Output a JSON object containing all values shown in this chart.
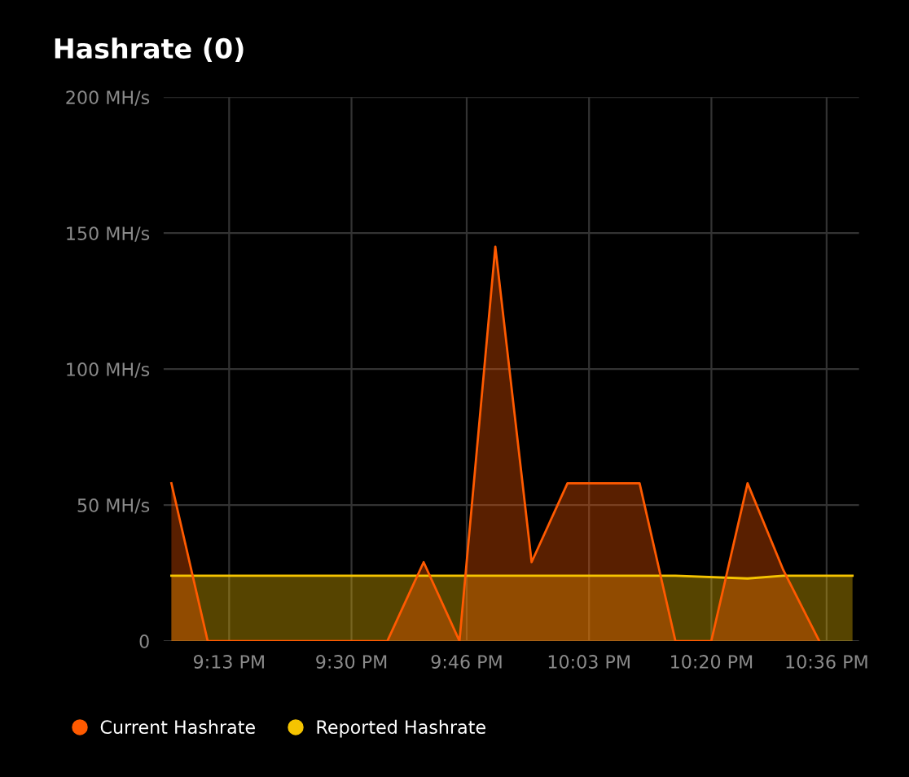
{
  "chart_data": {
    "type": "area",
    "title": "Hashrate (0)",
    "xlim": [
      21.065,
      22.675
    ],
    "xticks": [
      {
        "value": 21.2167,
        "label": "9:13 PM"
      },
      {
        "value": 21.5,
        "label": "9:30 PM"
      },
      {
        "value": 21.7667,
        "label": "9:46 PM"
      },
      {
        "value": 22.05,
        "label": "10:03 PM"
      },
      {
        "value": 22.3333,
        "label": "10:20 PM"
      },
      {
        "value": 22.6,
        "label": "10:36 PM"
      }
    ],
    "ylim": [
      0,
      200
    ],
    "yticks": [
      0,
      {
        "value": 50,
        "label": "50 MH/s"
      },
      {
        "value": 100,
        "label": "100 MH/s"
      },
      {
        "value": 150,
        "label": "150 MH/s"
      },
      {
        "value": 200,
        "label": "200 MH/s"
      }
    ],
    "grid": true,
    "legend": "bottom left",
    "marker": "none",
    "line_style": "solid",
    "series": [
      {
        "name": "Reported Hashrate",
        "color": "#f5c400",
        "x": [
          21.083,
          21.25,
          21.417,
          21.583,
          21.75,
          21.917,
          22.083,
          22.25,
          22.417,
          22.5,
          22.66
        ],
        "values": [
          24,
          24,
          24,
          24,
          24,
          24,
          24,
          24,
          23,
          24,
          24
        ]
      },
      {
        "name": "Current Hashrate",
        "color": "#ff5a00",
        "x": [
          21.083,
          21.167,
          21.25,
          21.417,
          21.583,
          21.667,
          21.75,
          21.833,
          21.917,
          22.0,
          22.167,
          22.25,
          22.333,
          22.417,
          22.5,
          22.583
        ],
        "values": [
          58,
          0,
          0,
          0,
          0,
          29,
          0,
          145,
          29,
          58,
          58,
          0,
          0,
          58,
          26,
          0
        ]
      }
    ]
  }
}
